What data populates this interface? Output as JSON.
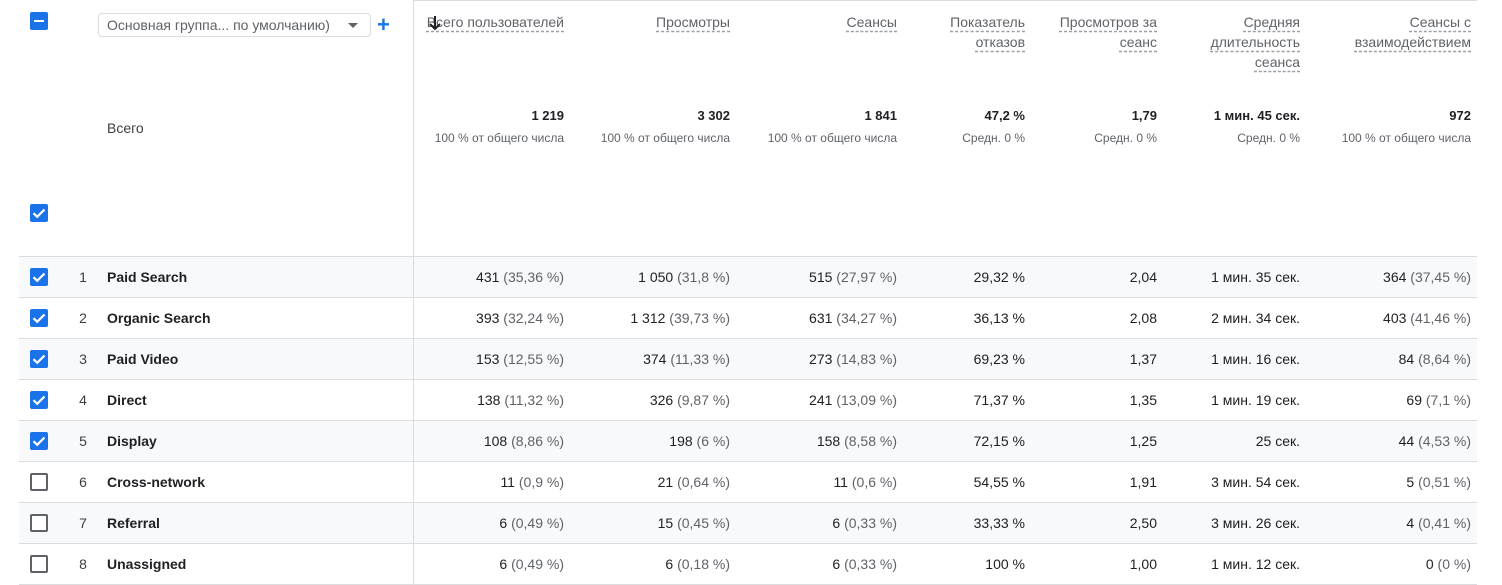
{
  "toolbar": {
    "group_select_value": "Основная группа... по умолчанию)",
    "add_label": "+"
  },
  "headers": [
    {
      "key": "users",
      "label": "Всего пользователей"
    },
    {
      "key": "views",
      "label": "Просмотры"
    },
    {
      "key": "sessions",
      "label": "Сеансы"
    },
    {
      "key": "bounce",
      "label": "Показатель отказов"
    },
    {
      "key": "views_per_session",
      "label": "Просмотров за сеанс"
    },
    {
      "key": "avg_duration",
      "label": "Средняя длительность сеанса"
    },
    {
      "key": "engaged",
      "label": "Сеансы с взаимодействием"
    }
  ],
  "totals": {
    "label": "Всего",
    "values": [
      {
        "value": "1 219",
        "sub": "100 % от общего числа"
      },
      {
        "value": "3 302",
        "sub": "100 % от общего числа"
      },
      {
        "value": "1 841",
        "sub": "100 % от общего числа"
      },
      {
        "value": "47,2 %",
        "sub": "Средн. 0 %"
      },
      {
        "value": "1,79",
        "sub": "Средн. 0 %"
      },
      {
        "value": "1 мин. 45 сек.",
        "sub": "Средн. 0 %"
      },
      {
        "value": "972",
        "sub": "100 % от общего числа"
      }
    ]
  },
  "rows": [
    {
      "idx": "1",
      "name": "Paid Search",
      "checked": true,
      "cells": [
        {
          "v": "431",
          "p": "(35,36 %)"
        },
        {
          "v": "1 050",
          "p": "(31,8 %)"
        },
        {
          "v": "515",
          "p": "(27,97 %)"
        },
        {
          "v": "29,32 %",
          "p": ""
        },
        {
          "v": "2,04",
          "p": ""
        },
        {
          "v": "1 мин. 35 сек.",
          "p": ""
        },
        {
          "v": "364",
          "p": "(37,45 %)"
        }
      ]
    },
    {
      "idx": "2",
      "name": "Organic Search",
      "checked": true,
      "cells": [
        {
          "v": "393",
          "p": "(32,24 %)"
        },
        {
          "v": "1 312",
          "p": "(39,73 %)"
        },
        {
          "v": "631",
          "p": "(34,27 %)"
        },
        {
          "v": "36,13 %",
          "p": ""
        },
        {
          "v": "2,08",
          "p": ""
        },
        {
          "v": "2 мин. 34 сек.",
          "p": ""
        },
        {
          "v": "403",
          "p": "(41,46 %)"
        }
      ]
    },
    {
      "idx": "3",
      "name": "Paid Video",
      "checked": true,
      "cells": [
        {
          "v": "153",
          "p": "(12,55 %)"
        },
        {
          "v": "374",
          "p": "(11,33 %)"
        },
        {
          "v": "273",
          "p": "(14,83 %)"
        },
        {
          "v": "69,23 %",
          "p": ""
        },
        {
          "v": "1,37",
          "p": ""
        },
        {
          "v": "1 мин. 16 сек.",
          "p": ""
        },
        {
          "v": "84",
          "p": "(8,64 %)"
        }
      ]
    },
    {
      "idx": "4",
      "name": "Direct",
      "checked": true,
      "cells": [
        {
          "v": "138",
          "p": "(11,32 %)"
        },
        {
          "v": "326",
          "p": "(9,87 %)"
        },
        {
          "v": "241",
          "p": "(13,09 %)"
        },
        {
          "v": "71,37 %",
          "p": ""
        },
        {
          "v": "1,35",
          "p": ""
        },
        {
          "v": "1 мин. 19 сек.",
          "p": ""
        },
        {
          "v": "69",
          "p": "(7,1 %)"
        }
      ]
    },
    {
      "idx": "5",
      "name": "Display",
      "checked": true,
      "cells": [
        {
          "v": "108",
          "p": "(8,86 %)"
        },
        {
          "v": "198",
          "p": "(6 %)"
        },
        {
          "v": "158",
          "p": "(8,58 %)"
        },
        {
          "v": "72,15 %",
          "p": ""
        },
        {
          "v": "1,25",
          "p": ""
        },
        {
          "v": "25 сек.",
          "p": ""
        },
        {
          "v": "44",
          "p": "(4,53 %)"
        }
      ]
    },
    {
      "idx": "6",
      "name": "Cross-network",
      "checked": false,
      "cells": [
        {
          "v": "11",
          "p": "(0,9 %)"
        },
        {
          "v": "21",
          "p": "(0,64 %)"
        },
        {
          "v": "11",
          "p": "(0,6 %)"
        },
        {
          "v": "54,55 %",
          "p": ""
        },
        {
          "v": "1,91",
          "p": ""
        },
        {
          "v": "3 мин. 54 сек.",
          "p": ""
        },
        {
          "v": "5",
          "p": "(0,51 %)"
        }
      ]
    },
    {
      "idx": "7",
      "name": "Referral",
      "checked": false,
      "cells": [
        {
          "v": "6",
          "p": "(0,49 %)"
        },
        {
          "v": "15",
          "p": "(0,45 %)"
        },
        {
          "v": "6",
          "p": "(0,33 %)"
        },
        {
          "v": "33,33 %",
          "p": ""
        },
        {
          "v": "2,50",
          "p": ""
        },
        {
          "v": "3 мин. 26 сек.",
          "p": ""
        },
        {
          "v": "4",
          "p": "(0,41 %)"
        }
      ]
    },
    {
      "idx": "8",
      "name": "Unassigned",
      "checked": false,
      "cells": [
        {
          "v": "6",
          "p": "(0,49 %)"
        },
        {
          "v": "6",
          "p": "(0,18 %)"
        },
        {
          "v": "6",
          "p": "(0,33 %)"
        },
        {
          "v": "100 %",
          "p": ""
        },
        {
          "v": "1,00",
          "p": ""
        },
        {
          "v": "1 мин. 12 сек.",
          "p": ""
        },
        {
          "v": "0",
          "p": "(0 %)"
        }
      ]
    }
  ],
  "icons": {
    "sort": "arrow-down-icon",
    "master_checkbox": "indeterminate-checkbox-icon",
    "group_caret": "caret-down-icon"
  },
  "colors": {
    "accent": "#1a73e8",
    "row_stripe": "#f8f9fa",
    "border": "#dadce0"
  }
}
